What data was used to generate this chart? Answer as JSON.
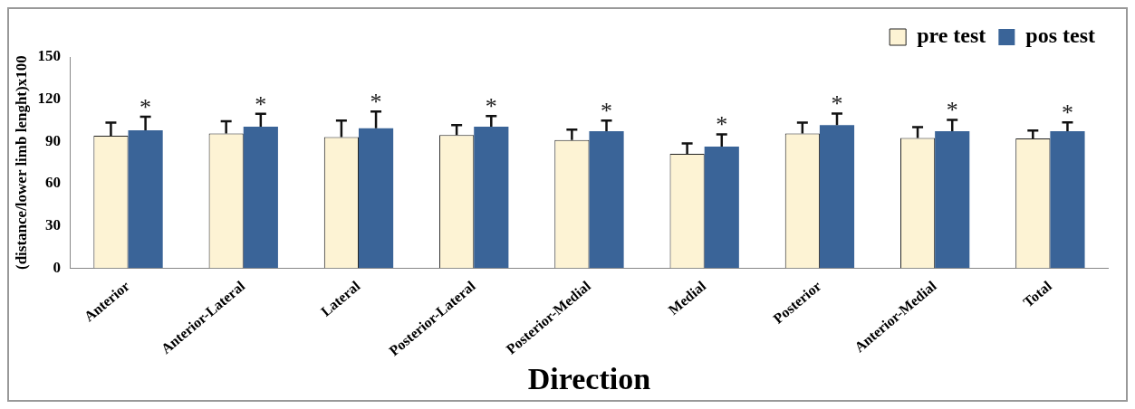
{
  "chart_data": {
    "type": "bar",
    "xlabel": "Direction",
    "ylabel": "(distance/lower limb lenght)x100",
    "categories": [
      "Anterior",
      "Anterior-Lateral",
      "Lateral",
      "Posterior-Lateral",
      "Posterior-Medial",
      "Medial",
      "Posterior",
      "Anterior-Medial",
      "Total"
    ],
    "series": [
      {
        "name": "pre test",
        "color": "#fdf3d4",
        "values": [
          94,
          95.7,
          93.1,
          94.6,
          91,
          81.2,
          95.7,
          92.4,
          92.1
        ],
        "errors": [
          [
            94,
            103.4
          ],
          [
            95.7,
            104.3
          ],
          [
            93.1,
            104.9
          ],
          [
            94.6,
            101.6
          ],
          [
            91,
            98.4
          ],
          [
            81.2,
            88.6
          ],
          [
            95.7,
            103.4
          ],
          [
            92.4,
            100.2
          ],
          [
            92.1,
            97.8
          ]
        ]
      },
      {
        "name": "pos test",
        "color": "#3a6498",
        "values": [
          98,
          100.5,
          99.3,
          100.5,
          97.3,
          86.3,
          101.6,
          97.3,
          97.3
        ],
        "errors": [
          [
            98,
            107.6
          ],
          [
            100.5,
            109.6
          ],
          [
            99.3,
            111.2
          ],
          [
            100.5,
            108
          ],
          [
            97.3,
            104.9
          ],
          [
            86.3,
            95.1
          ],
          [
            101.6,
            109.8
          ],
          [
            97.3,
            105.4
          ],
          [
            97.3,
            103.6
          ]
        ]
      }
    ],
    "annotations": [
      "*",
      "*",
      "*",
      "*",
      "*",
      "*",
      "*",
      "*",
      "*"
    ],
    "ylim": [
      0,
      150
    ],
    "yticks": [
      0,
      30,
      60,
      90,
      120,
      150
    ],
    "grid": false,
    "legend": "top right"
  }
}
